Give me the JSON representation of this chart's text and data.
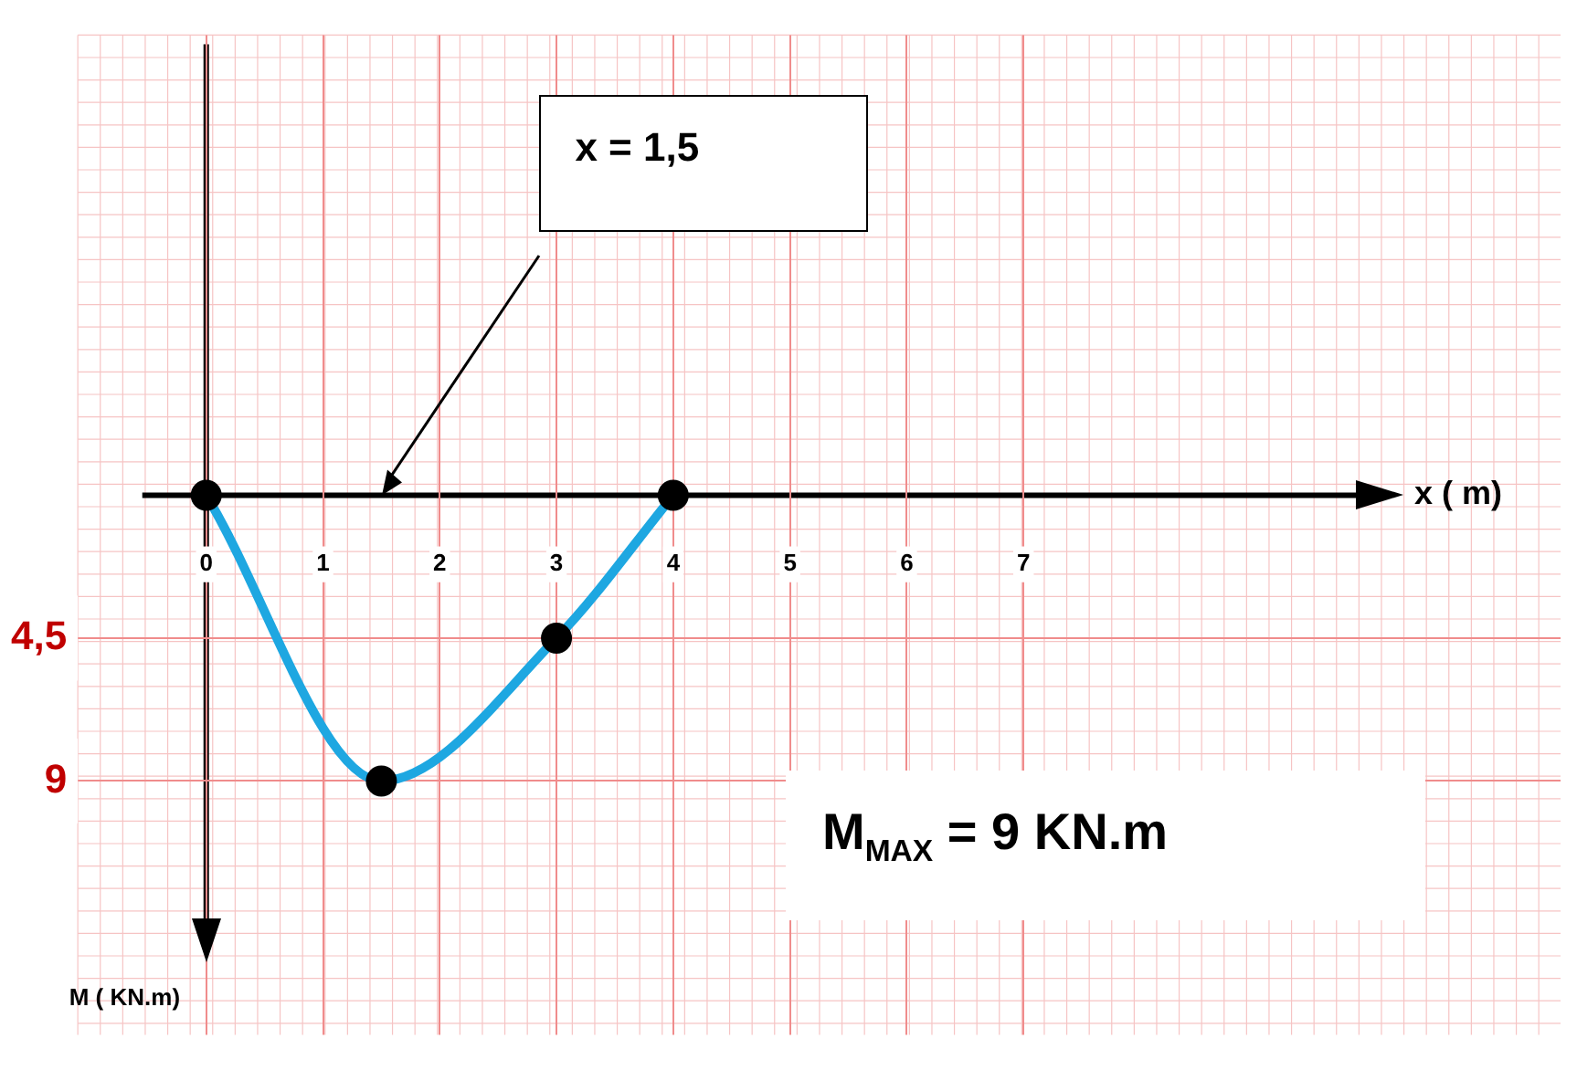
{
  "chart_data": {
    "type": "line",
    "xlabel": "x ( m)",
    "ylabel": "M ( KN.m)",
    "xlim": [
      -1.1,
      11.6
    ],
    "ylim": [
      17,
      -14.5
    ],
    "xticks": [
      0,
      1,
      2,
      3,
      4,
      5,
      6,
      7
    ],
    "yticks": [
      {
        "value": 4.5,
        "label": "4,5"
      },
      9
    ],
    "grid": true,
    "series": [
      {
        "color": "#1ea7e1",
        "x": [
          0,
          1.5,
          3,
          4
        ],
        "values": [
          0,
          9,
          4.5,
          0
        ],
        "marker": "none"
      },
      {
        "type": "scatter",
        "color": "#000000",
        "x": [
          0,
          1.5,
          3,
          4
        ],
        "values": [
          0,
          9,
          4.5,
          0
        ],
        "marker": "circle"
      }
    ],
    "annotations": [
      "x = 1,5",
      "M$_{MAX}$ = 9 KN.m"
    ]
  }
}
